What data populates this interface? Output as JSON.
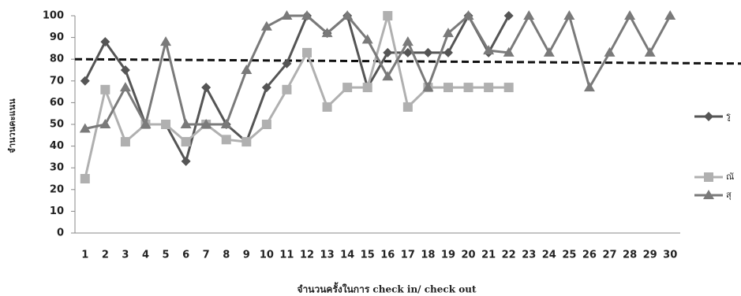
{
  "chart_data": {
    "type": "line",
    "x_label": "จำนวนครั้งในการ check in/ check out",
    "y_label": "จำนวนคะแนน",
    "categories": [
      "1",
      "2",
      "3",
      "4",
      "5",
      "6",
      "7",
      "8",
      "9",
      "10",
      "11",
      "12",
      "13",
      "14",
      "15",
      "16",
      "17",
      "18",
      "19",
      "20",
      "21",
      "22",
      "23",
      "24",
      "25",
      "26",
      "27",
      "28",
      "29",
      "30"
    ],
    "ylim": [
      0,
      100
    ],
    "yticks": [
      0,
      10,
      20,
      30,
      40,
      50,
      60,
      70,
      80,
      90,
      100
    ],
    "grid": false,
    "legend": "right",
    "reference_line": {
      "values": [
        80,
        78
      ],
      "color": "#111"
    },
    "series": [
      {
        "name": "รู",
        "color": "#555555",
        "marker": "diamond",
        "values": [
          70,
          88,
          75,
          50,
          50,
          33,
          67,
          50,
          42,
          67,
          78,
          100,
          92,
          100,
          67,
          83,
          83,
          83,
          83,
          100,
          83,
          100,
          null,
          null,
          null,
          null,
          null,
          null,
          null,
          null
        ]
      },
      {
        "name": "ณั",
        "color": "#b0b0b0",
        "marker": "square",
        "values": [
          25,
          66,
          42,
          50,
          50,
          42,
          50,
          43,
          42,
          50,
          66,
          83,
          58,
          67,
          67,
          100,
          58,
          67,
          67,
          67,
          67,
          67,
          null,
          null,
          null,
          null,
          null,
          null,
          null,
          null
        ]
      },
      {
        "name": "สุ",
        "color": "#7a7a7a",
        "marker": "triangle",
        "values": [
          48,
          50,
          67,
          50,
          88,
          50,
          50,
          50,
          75,
          95,
          100,
          100,
          92,
          100,
          89,
          72,
          88,
          67,
          92,
          100,
          84,
          83,
          100,
          83,
          100,
          67,
          83,
          100,
          83,
          100
        ]
      }
    ]
  }
}
